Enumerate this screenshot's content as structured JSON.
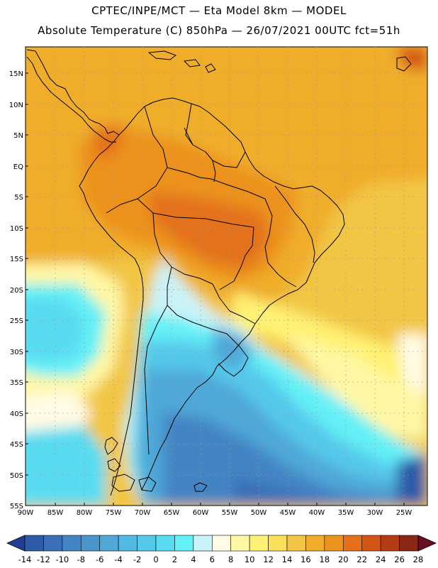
{
  "title_line1": "CPTEC/INPE/MCT —  Eta Model 8km — MODEL",
  "title_line2": "Absolute Temperature (C) 850hPa — 26/07/2021 00UTC fct=51h",
  "lat_labels": [
    "15N",
    "10N",
    "5N",
    "EQ",
    "5S",
    "10S",
    "15S",
    "20S",
    "25S",
    "30S",
    "35S",
    "40S",
    "45S",
    "50S",
    "55S"
  ],
  "lon_labels": [
    "90W",
    "85W",
    "80W",
    "75W",
    "70W",
    "65W",
    "60W",
    "55W",
    "50W",
    "45W",
    "40W",
    "35W",
    "30W",
    "25W"
  ],
  "colorbar": {
    "labels": [
      "-14",
      "-12",
      "-10",
      "-8",
      "-6",
      "-4",
      "-2",
      "0",
      "2",
      "4",
      "6",
      "8",
      "10",
      "12",
      "14",
      "16",
      "18",
      "20",
      "22",
      "24",
      "26",
      "28"
    ],
    "colors": [
      "#1f3e94",
      "#2e5aa8",
      "#3b70b8",
      "#4384c4",
      "#4a96cc",
      "#4fa8d8",
      "#52b9e2",
      "#55c9ea",
      "#59dbf1",
      "#64f0f7",
      "#c9f3f8",
      "#fffbe4",
      "#fff7a4",
      "#fff173",
      "#f9df5a",
      "#f2c644",
      "#f0ad2a",
      "#ec921f",
      "#e4711a",
      "#d35516",
      "#b43c12",
      "#8a2614",
      "#6a0f22"
    ]
  }
}
